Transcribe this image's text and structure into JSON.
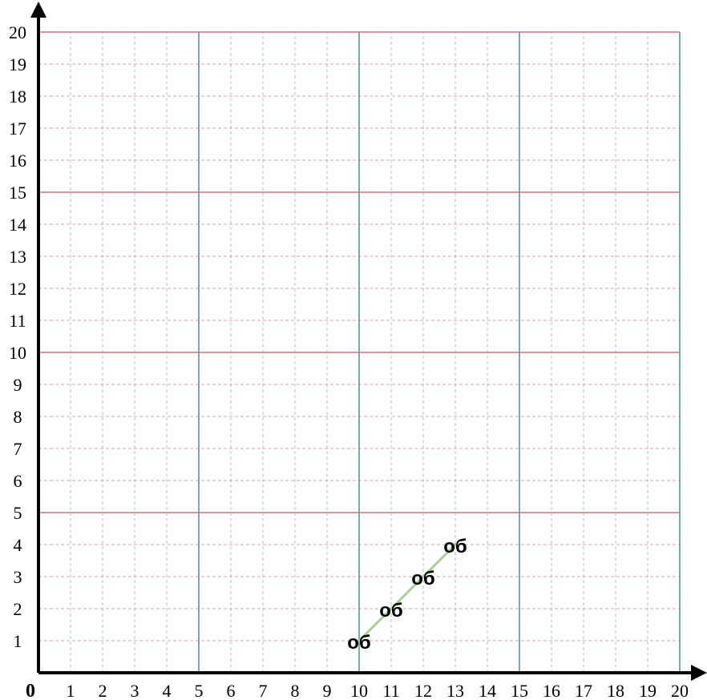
{
  "chart_data": {
    "type": "line",
    "title": "",
    "xlabel": "",
    "ylabel": "",
    "xlim": [
      0,
      20
    ],
    "ylim": [
      0,
      20
    ],
    "grid": true,
    "minor_grid_step": 1,
    "major_grid_step": 5,
    "origin_label": "0",
    "x_ticks": [
      "1",
      "2",
      "3",
      "4",
      "5",
      "6",
      "7",
      "8",
      "9",
      "10",
      "11",
      "12",
      "13",
      "14",
      "15",
      "16",
      "17",
      "18",
      "19",
      "20"
    ],
    "y_ticks": [
      "1",
      "2",
      "3",
      "4",
      "5",
      "6",
      "7",
      "8",
      "9",
      "10",
      "11",
      "12",
      "13",
      "14",
      "15",
      "16",
      "17",
      "18",
      "19",
      "20"
    ],
    "series": [
      {
        "color": "#a9d18e",
        "points": [
          {
            "x": 10,
            "y": 1,
            "label": "об"
          },
          {
            "x": 11,
            "y": 2,
            "label": "об"
          },
          {
            "x": 12,
            "y": 3,
            "label": "об"
          },
          {
            "x": 13,
            "y": 4,
            "label": "об"
          }
        ]
      }
    ],
    "colors": {
      "minor_grid": "#9fc4cc",
      "minor_grid_h": "#d9a0a6",
      "major_vertical": "#4f8f99",
      "major_horizontal": "#c9737a",
      "axis": "#000000"
    }
  }
}
